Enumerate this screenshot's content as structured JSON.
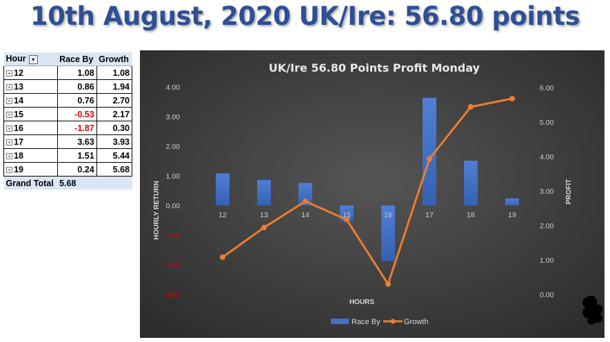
{
  "headline": "10th August, 2020 UK/Ire: 56.80 points",
  "pivot": {
    "headers": {
      "hour": "Hour",
      "race_by": "Race By",
      "growth": "Growth"
    },
    "rows": [
      {
        "hour": "12",
        "race_by": "1.08",
        "growth": "1.08"
      },
      {
        "hour": "13",
        "race_by": "0.86",
        "growth": "1.94"
      },
      {
        "hour": "14",
        "race_by": "0.76",
        "growth": "2.70"
      },
      {
        "hour": "15",
        "race_by": "-0.53",
        "growth": "2.17"
      },
      {
        "hour": "16",
        "race_by": "-1.87",
        "growth": "0.30"
      },
      {
        "hour": "17",
        "race_by": "3.63",
        "growth": "3.93"
      },
      {
        "hour": "18",
        "race_by": "1.51",
        "growth": "5.44"
      },
      {
        "hour": "19",
        "race_by": "0.24",
        "growth": "5.68"
      }
    ],
    "total": {
      "label": "Grand Total",
      "value": "5.68"
    },
    "negative_color": "#e00000"
  },
  "chart_data": {
    "type": "bar",
    "title": "UK/Ire 56.80 Points Profit Monday",
    "xlabel": "HOURS",
    "ylabel": "HOURLY RETURN",
    "y2label": "PROFIT",
    "categories": [
      "12",
      "13",
      "14",
      "15",
      "16",
      "17",
      "18",
      "19"
    ],
    "series": [
      {
        "name": "Race By",
        "type": "bar",
        "axis": "left",
        "color": "#4472c4",
        "values": [
          1.08,
          0.86,
          0.76,
          -0.53,
          -1.87,
          3.63,
          1.51,
          0.24
        ]
      },
      {
        "name": "Growth",
        "type": "line",
        "axis": "right",
        "color": "#ed7d31",
        "values": [
          1.08,
          1.94,
          2.7,
          2.17,
          0.3,
          3.93,
          5.44,
          5.68
        ]
      }
    ],
    "ylim": [
      -3,
      4
    ],
    "y2lim": [
      0,
      6
    ],
    "yticks": [
      "4.00",
      "3.00",
      "2.00",
      "1.00",
      "0.00",
      "-1.00",
      "-2.00",
      "-3.00"
    ],
    "y2ticks": [
      "6.00",
      "5.00",
      "4.00",
      "3.00",
      "2.00",
      "1.00",
      "0.00"
    ],
    "negative_tick_color": "#e00000",
    "background": "#3a3a3a",
    "grid": false,
    "legend_position": "bottom"
  }
}
